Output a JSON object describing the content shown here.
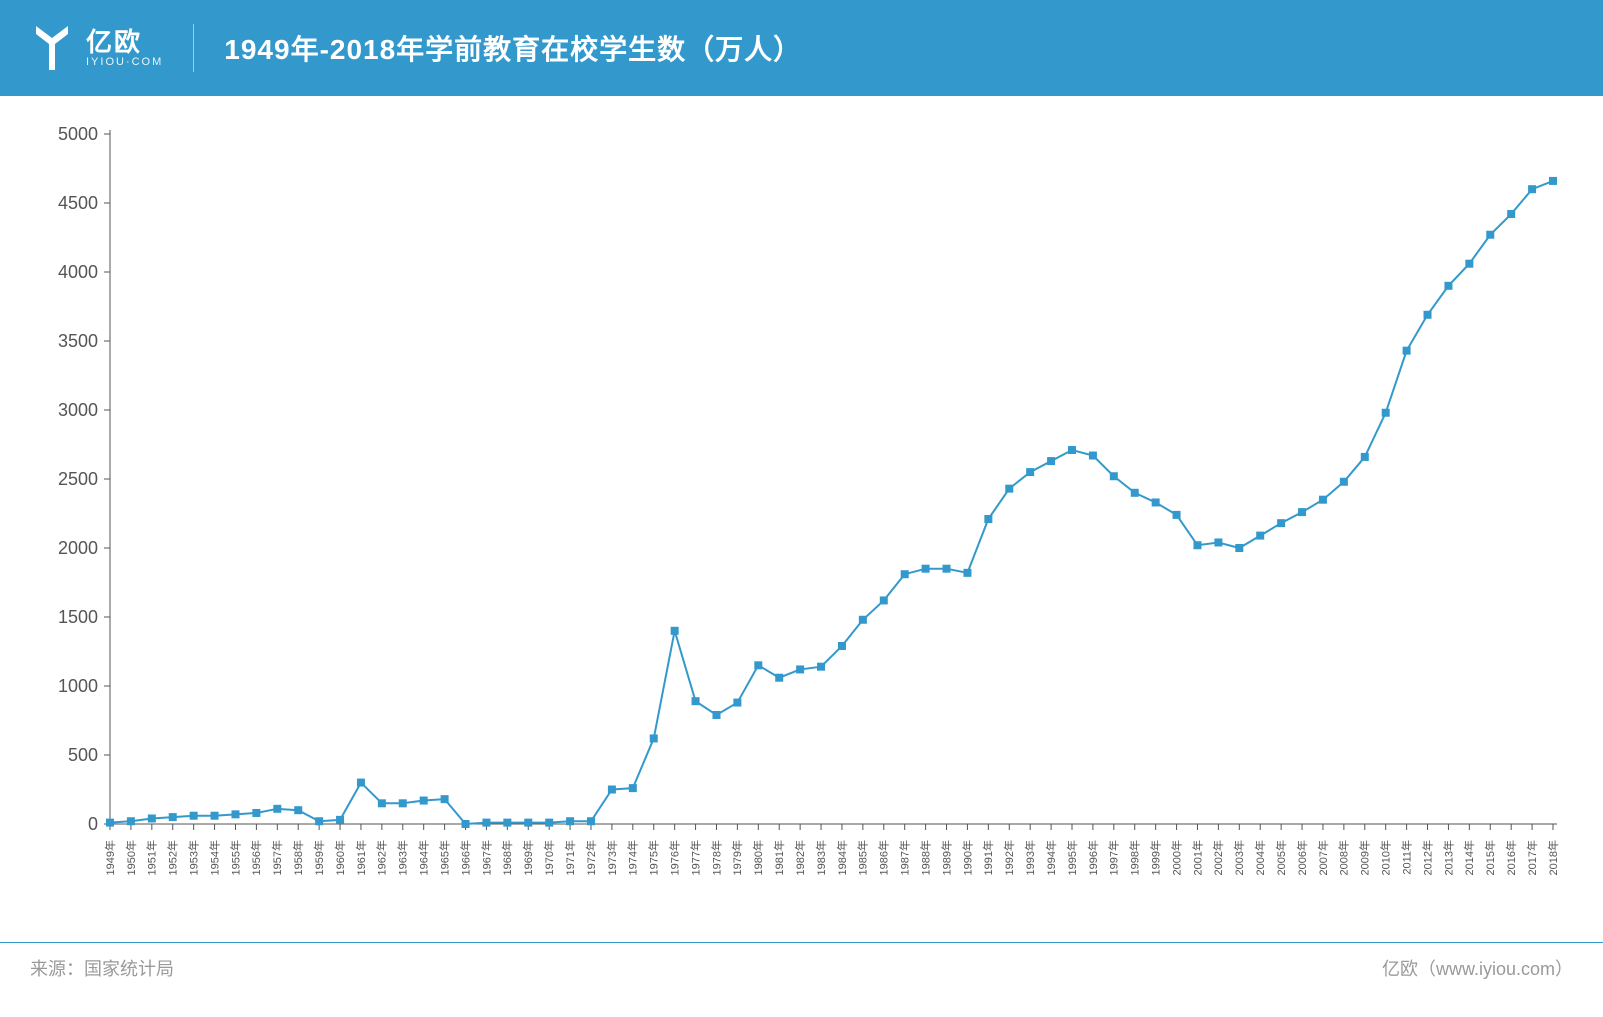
{
  "brand": {
    "name_cn": "亿欧",
    "name_en": "IYIOU·COM"
  },
  "title": "1949年-2018年学前教育在校学生数（万人）",
  "chart": {
    "type": "line",
    "line_color": "#3399cc",
    "marker_color": "#3399cc",
    "marker_size": 4,
    "line_width": 2,
    "background_color": "#ffffff",
    "axis_color": "#555555",
    "tick_label_color": "#555555",
    "label_fontsize": 18,
    "xtick_fontsize": 11,
    "ylim": [
      0,
      5000
    ],
    "ytick_step": 500,
    "x_suffix": "年",
    "years": [
      1949,
      1950,
      1951,
      1952,
      1953,
      1954,
      1955,
      1956,
      1957,
      1958,
      1959,
      1960,
      1961,
      1962,
      1963,
      1964,
      1965,
      1966,
      1967,
      1968,
      1969,
      1970,
      1971,
      1972,
      1973,
      1974,
      1975,
      1976,
      1977,
      1978,
      1979,
      1980,
      1981,
      1982,
      1983,
      1984,
      1985,
      1986,
      1987,
      1988,
      1989,
      1990,
      1991,
      1992,
      1993,
      1994,
      1995,
      1996,
      1997,
      1998,
      1999,
      2000,
      2001,
      2002,
      2003,
      2004,
      2005,
      2006,
      2007,
      2008,
      2009,
      2010,
      2011,
      2012,
      2013,
      2014,
      2015,
      2016,
      2017,
      2018
    ],
    "values": [
      10,
      20,
      40,
      50,
      60,
      60,
      70,
      80,
      110,
      100,
      20,
      30,
      300,
      150,
      150,
      170,
      180,
      0,
      10,
      10,
      10,
      10,
      20,
      20,
      250,
      260,
      620,
      1400,
      890,
      790,
      880,
      1150,
      1060,
      1120,
      1140,
      1290,
      1480,
      1620,
      1810,
      1850,
      1850,
      1820,
      2210,
      2430,
      2550,
      2630,
      2710,
      2670,
      2520,
      2400,
      2330,
      2240,
      2020,
      2040,
      2000,
      2090,
      2180,
      2260,
      2350,
      2480,
      2660,
      2980,
      3430,
      3690,
      3900,
      4060,
      4270,
      4420,
      4600,
      4660
    ]
  },
  "footer": {
    "source_label": "来源：",
    "source_value": "国家统计局",
    "credit_prefix": "亿欧",
    "credit_url": "（www.iyiou.com）",
    "text_color": "#9a9a9a",
    "border_color": "#3399cc"
  },
  "header": {
    "bg_color": "#3399cc"
  }
}
